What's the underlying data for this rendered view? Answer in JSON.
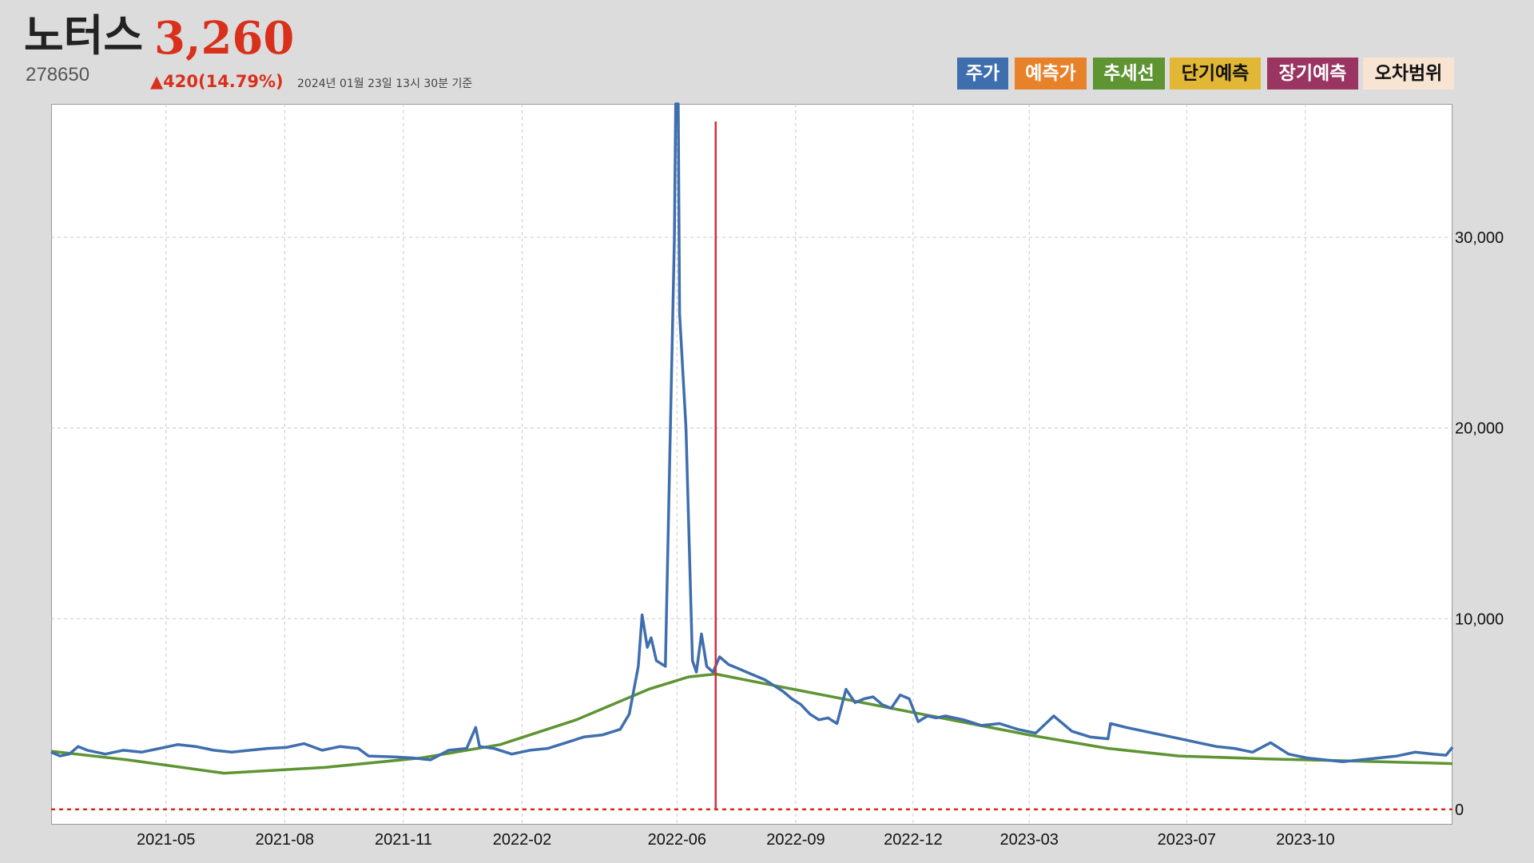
{
  "header": {
    "name": "노터스",
    "price": "3,260",
    "code": "278650",
    "change": "▲420(14.79%)",
    "date": "2024년 01월 23일 13시 30분 기준"
  },
  "legend": [
    {
      "label": "주가",
      "bg": "#3f6eae",
      "fg": "#ffffff"
    },
    {
      "label": "예측가",
      "bg": "#e8822a",
      "fg": "#ffffff"
    },
    {
      "label": "추세선",
      "bg": "#5e9432",
      "fg": "#ffffff"
    },
    {
      "label": "단기예측",
      "bg": "#e2b735",
      "fg": "#111111"
    },
    {
      "label": "장기예측",
      "bg": "#9a3561",
      "fg": "#ffffff"
    },
    {
      "label": "오차범위",
      "bg": "#f7e4d2",
      "fg": "#111111"
    }
  ],
  "colors": {
    "price_line": "#3f6eae",
    "trend_line": "#5e9432",
    "marker_line": "#d0303a",
    "zero_line": "#d62a1e"
  },
  "chart_data": {
    "type": "line",
    "x_range": [
      "2021-02-01",
      "2024-01-23"
    ],
    "ylim": [
      -800,
      37000
    ],
    "y_ticks": [
      0,
      10000,
      20000,
      30000
    ],
    "y_tick_labels": [
      "0",
      "10,000",
      "20,000",
      "30,000"
    ],
    "x_ticks": [
      "2021-05",
      "2021-08",
      "2021-11",
      "2022-02",
      "2022-06",
      "2022-09",
      "2022-12",
      "2023-03",
      "2023-07",
      "2023-10"
    ],
    "marker_date": "2022-07-01",
    "grid": true,
    "series": [
      {
        "id": "price",
        "points": [
          [
            "2021-02-01",
            3000
          ],
          [
            "2021-02-08",
            2800
          ],
          [
            "2021-02-15",
            2900
          ],
          [
            "2021-02-22",
            3300
          ],
          [
            "2021-03-01",
            3100
          ],
          [
            "2021-03-15",
            2900
          ],
          [
            "2021-03-29",
            3100
          ],
          [
            "2021-04-12",
            3000
          ],
          [
            "2021-04-26",
            3200
          ],
          [
            "2021-05-10",
            3400
          ],
          [
            "2021-05-24",
            3300
          ],
          [
            "2021-06-07",
            3100
          ],
          [
            "2021-06-21",
            3000
          ],
          [
            "2021-07-05",
            3100
          ],
          [
            "2021-07-19",
            3200
          ],
          [
            "2021-08-02",
            3250
          ],
          [
            "2021-08-16",
            3450
          ],
          [
            "2021-08-30",
            3100
          ],
          [
            "2021-09-13",
            3300
          ],
          [
            "2021-09-27",
            3200
          ],
          [
            "2021-10-05",
            2800
          ],
          [
            "2021-10-25",
            2750
          ],
          [
            "2021-11-08",
            2700
          ],
          [
            "2021-11-22",
            2600
          ],
          [
            "2021-12-06",
            3100
          ],
          [
            "2021-12-20",
            3200
          ],
          [
            "2021-12-27",
            4300
          ],
          [
            "2021-12-30",
            3300
          ],
          [
            "2022-01-10",
            3200
          ],
          [
            "2022-01-24",
            2900
          ],
          [
            "2022-02-07",
            3100
          ],
          [
            "2022-02-21",
            3200
          ],
          [
            "2022-03-07",
            3500
          ],
          [
            "2022-03-21",
            3800
          ],
          [
            "2022-04-04",
            3900
          ],
          [
            "2022-04-18",
            4200
          ],
          [
            "2022-04-25",
            5000
          ],
          [
            "2022-05-02",
            7500
          ],
          [
            "2022-05-05",
            10200
          ],
          [
            "2022-05-09",
            8500
          ],
          [
            "2022-05-12",
            9000
          ],
          [
            "2022-05-16",
            7800
          ],
          [
            "2022-05-23",
            7500
          ],
          [
            "2022-05-30",
            30000
          ],
          [
            "2022-05-31",
            37000
          ],
          [
            "2022-06-02",
            37000
          ],
          [
            "2022-06-03",
            26000
          ],
          [
            "2022-06-08",
            20000
          ],
          [
            "2022-06-13",
            7800
          ],
          [
            "2022-06-16",
            7200
          ],
          [
            "2022-06-20",
            9200
          ],
          [
            "2022-06-24",
            7500
          ],
          [
            "2022-06-29",
            7200
          ],
          [
            "2022-07-04",
            8000
          ],
          [
            "2022-07-11",
            7600
          ],
          [
            "2022-07-18",
            7400
          ],
          [
            "2022-07-25",
            7200
          ],
          [
            "2022-08-01",
            7000
          ],
          [
            "2022-08-08",
            6800
          ],
          [
            "2022-08-15",
            6500
          ],
          [
            "2022-08-22",
            6200
          ],
          [
            "2022-08-29",
            5800
          ],
          [
            "2022-09-05",
            5500
          ],
          [
            "2022-09-12",
            5000
          ],
          [
            "2022-09-19",
            4700
          ],
          [
            "2022-09-26",
            4800
          ],
          [
            "2022-10-03",
            4500
          ],
          [
            "2022-10-10",
            6300
          ],
          [
            "2022-10-17",
            5600
          ],
          [
            "2022-10-24",
            5800
          ],
          [
            "2022-10-31",
            5900
          ],
          [
            "2022-11-07",
            5500
          ],
          [
            "2022-11-14",
            5300
          ],
          [
            "2022-11-21",
            6000
          ],
          [
            "2022-11-28",
            5800
          ],
          [
            "2022-12-05",
            4600
          ],
          [
            "2022-12-12",
            4900
          ],
          [
            "2022-12-19",
            4800
          ],
          [
            "2022-12-26",
            4900
          ],
          [
            "2023-01-09",
            4700
          ],
          [
            "2023-01-23",
            4400
          ],
          [
            "2023-02-06",
            4500
          ],
          [
            "2023-02-20",
            4200
          ],
          [
            "2023-03-06",
            4000
          ],
          [
            "2023-03-20",
            4900
          ],
          [
            "2023-04-03",
            4100
          ],
          [
            "2023-04-17",
            3800
          ],
          [
            "2023-05-01",
            3700
          ],
          [
            "2023-05-03",
            4500
          ],
          [
            "2023-05-15",
            4300
          ],
          [
            "2023-05-29",
            4100
          ],
          [
            "2023-06-12",
            3900
          ],
          [
            "2023-06-26",
            3700
          ],
          [
            "2023-07-10",
            3500
          ],
          [
            "2023-07-24",
            3300
          ],
          [
            "2023-08-07",
            3200
          ],
          [
            "2023-08-21",
            3000
          ],
          [
            "2023-09-04",
            3500
          ],
          [
            "2023-09-18",
            2900
          ],
          [
            "2023-10-02",
            2700
          ],
          [
            "2023-10-16",
            2600
          ],
          [
            "2023-10-30",
            2500
          ],
          [
            "2023-11-13",
            2600
          ],
          [
            "2023-11-27",
            2700
          ],
          [
            "2023-12-11",
            2800
          ],
          [
            "2023-12-25",
            3000
          ],
          [
            "2024-01-08",
            2900
          ],
          [
            "2024-01-18",
            2840
          ],
          [
            "2024-01-23",
            3260
          ]
        ]
      },
      {
        "id": "trend",
        "points": [
          [
            "2021-02-01",
            3050
          ],
          [
            "2021-04-01",
            2600
          ],
          [
            "2021-06-15",
            1900
          ],
          [
            "2021-09-01",
            2200
          ],
          [
            "2021-11-15",
            2700
          ],
          [
            "2022-01-15",
            3400
          ],
          [
            "2022-03-15",
            4700
          ],
          [
            "2022-05-10",
            6300
          ],
          [
            "2022-06-10",
            6950
          ],
          [
            "2022-07-01",
            7100
          ],
          [
            "2022-08-15",
            6500
          ],
          [
            "2022-10-15",
            5700
          ],
          [
            "2022-12-15",
            4900
          ],
          [
            "2023-03-01",
            3900
          ],
          [
            "2023-05-01",
            3200
          ],
          [
            "2023-06-25",
            2800
          ],
          [
            "2023-09-01",
            2650
          ],
          [
            "2023-11-01",
            2550
          ],
          [
            "2024-01-23",
            2400
          ]
        ]
      }
    ]
  }
}
